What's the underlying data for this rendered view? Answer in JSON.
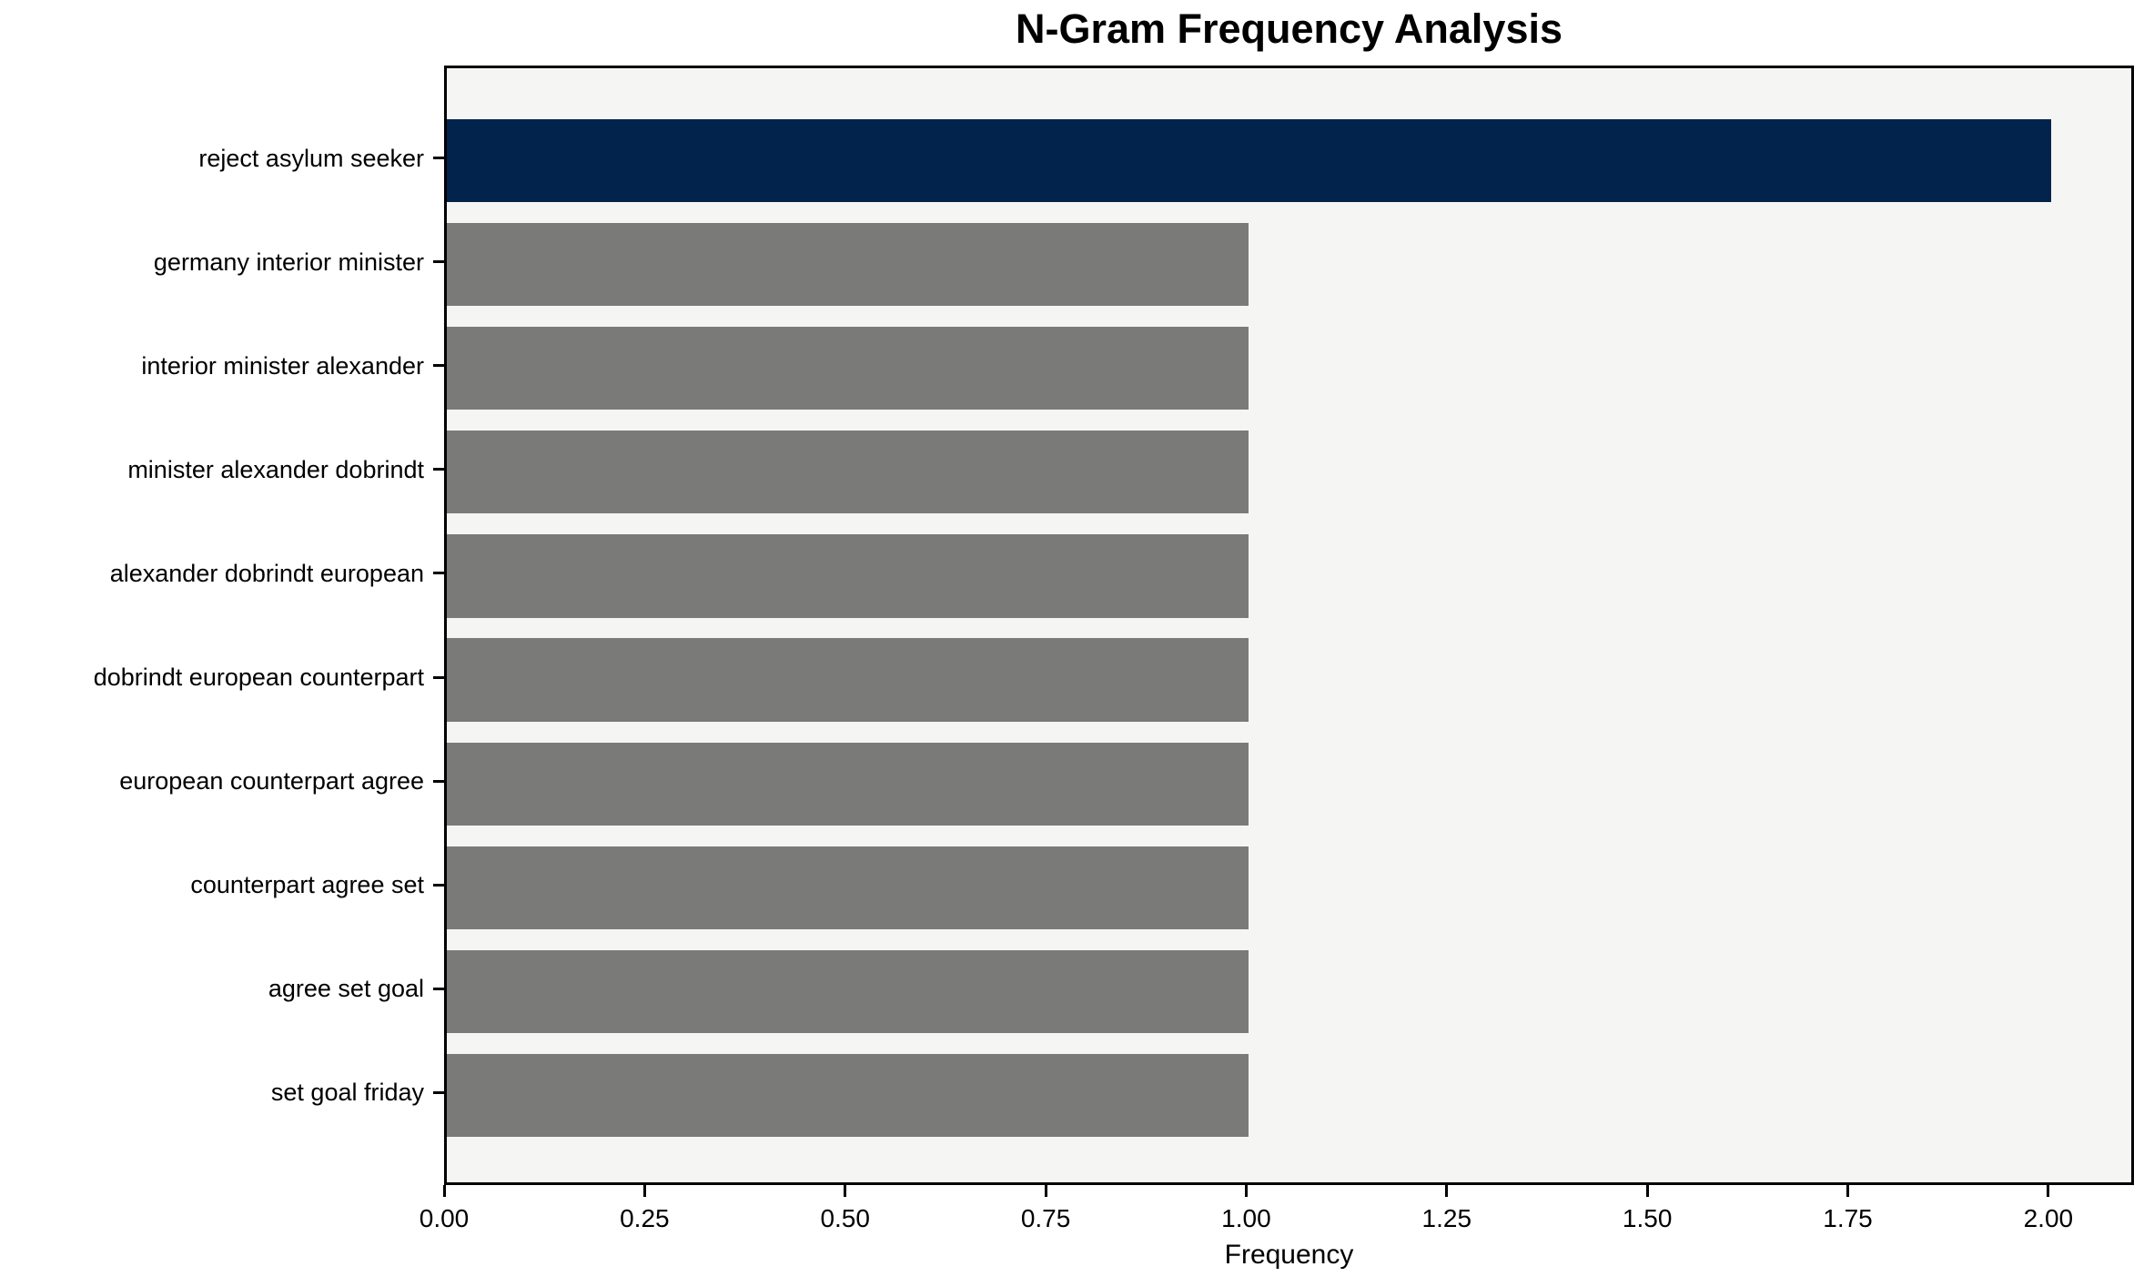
{
  "chart_data": {
    "type": "bar",
    "orientation": "horizontal",
    "title": "N-Gram Frequency Analysis",
    "xlabel": "Frequency",
    "ylabel": "",
    "categories": [
      "reject asylum seeker",
      "germany interior minister",
      "interior minister alexander",
      "minister alexander dobrindt",
      "alexander dobrindt european",
      "dobrindt european counterpart",
      "european counterpart agree",
      "counterpart agree set",
      "agree set goal",
      "set goal friday"
    ],
    "values": [
      2,
      1,
      1,
      1,
      1,
      1,
      1,
      1,
      1,
      1
    ],
    "bar_colors": [
      "#02234c",
      "#7a7a78",
      "#7a7a78",
      "#7a7a78",
      "#7a7a78",
      "#7a7a78",
      "#7a7a78",
      "#7a7a78",
      "#7a7a78",
      "#7a7a78"
    ],
    "x_tick_labels": [
      "0.00",
      "0.25",
      "0.50",
      "0.75",
      "1.00",
      "1.25",
      "1.50",
      "1.75",
      "2.00"
    ],
    "x_tick_values": [
      0,
      0.25,
      0.5,
      0.75,
      1.0,
      1.25,
      1.5,
      1.75,
      2.0
    ],
    "xlim": [
      0,
      2.1
    ],
    "grid": false,
    "legend_position": "none",
    "colors": {
      "highlight_bar": "#02234c",
      "default_bar": "#7a7a78",
      "plot_background": "#f5f5f4",
      "figure_background": "#ffffff",
      "axis": "#000000",
      "text": "#000000"
    }
  }
}
